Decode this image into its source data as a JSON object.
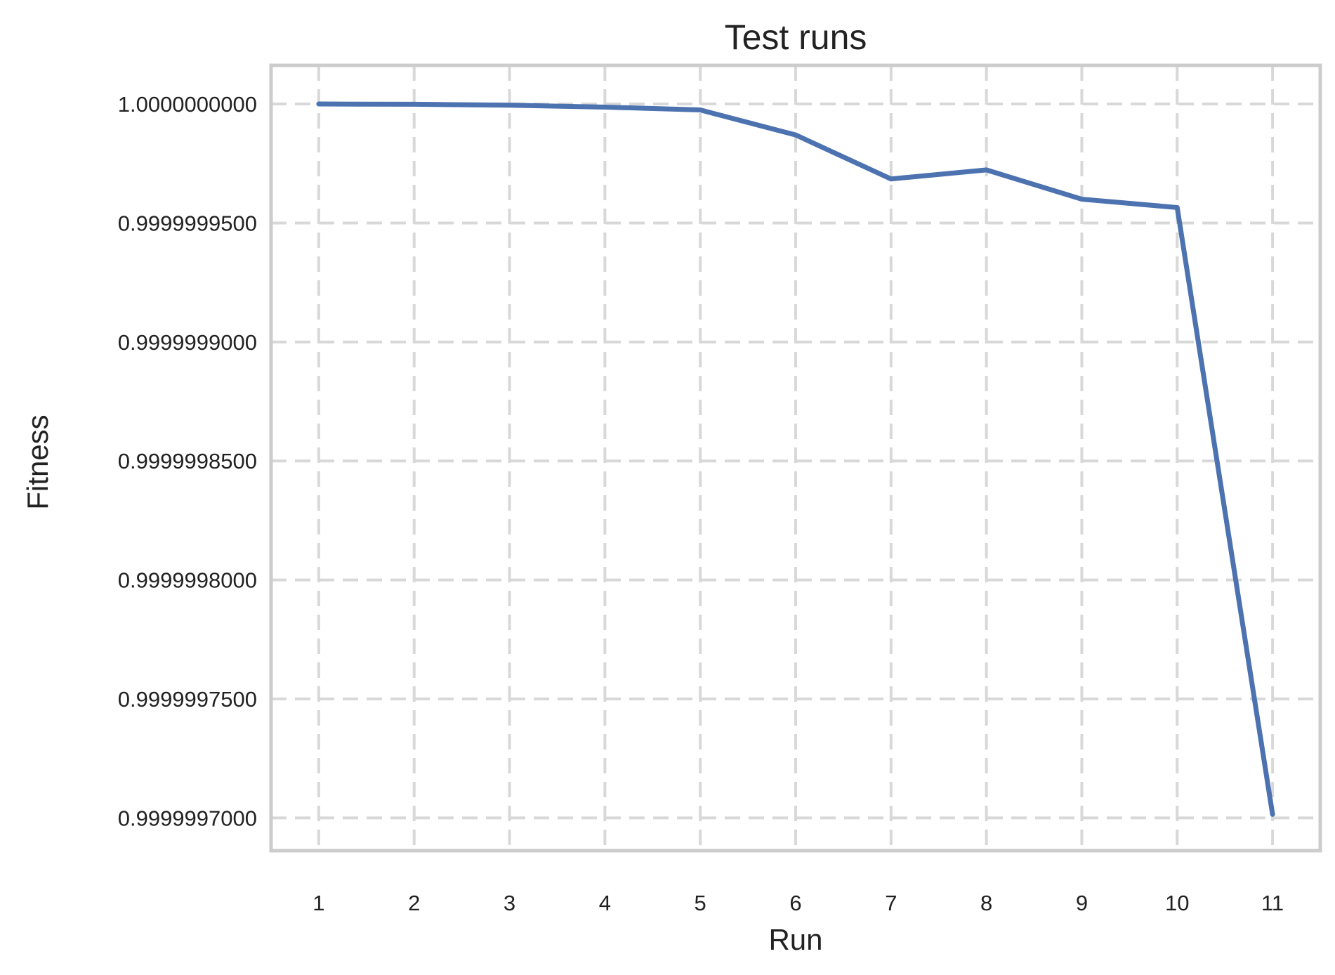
{
  "chart_data": {
    "type": "line",
    "title": "Test runs",
    "xlabel": "Run",
    "ylabel": "Fitness",
    "x": [
      1,
      2,
      3,
      4,
      5,
      6,
      7,
      8,
      9,
      10,
      11
    ],
    "series": [
      {
        "values": [
          1.0,
          0.9999999999,
          0.9999999995,
          0.9999999987,
          0.9999999975,
          0.999999987,
          0.9999999685,
          0.9999999723,
          0.99999996,
          0.9999999565,
          0.9999997015
        ]
      }
    ],
    "xticks": [
      "1",
      "2",
      "3",
      "4",
      "5",
      "6",
      "7",
      "8",
      "9",
      "10",
      "11"
    ],
    "yticks": [
      {
        "value": 1.0,
        "label": "1.0000000000"
      },
      {
        "value": 0.99999995,
        "label": "0.9999999500"
      },
      {
        "value": 0.9999999,
        "label": "0.9999999000"
      },
      {
        "value": 0.99999985,
        "label": "0.9999998500"
      },
      {
        "value": 0.9999998,
        "label": "0.9999998000"
      },
      {
        "value": 0.99999975,
        "label": "0.9999997500"
      },
      {
        "value": 0.9999997,
        "label": "0.9999997000"
      }
    ],
    "xlim": [
      0.5,
      11.5
    ],
    "ylim": [
      0.99999968625,
      1.00000001625
    ],
    "grid": true,
    "line_color": "#4c72b0"
  }
}
